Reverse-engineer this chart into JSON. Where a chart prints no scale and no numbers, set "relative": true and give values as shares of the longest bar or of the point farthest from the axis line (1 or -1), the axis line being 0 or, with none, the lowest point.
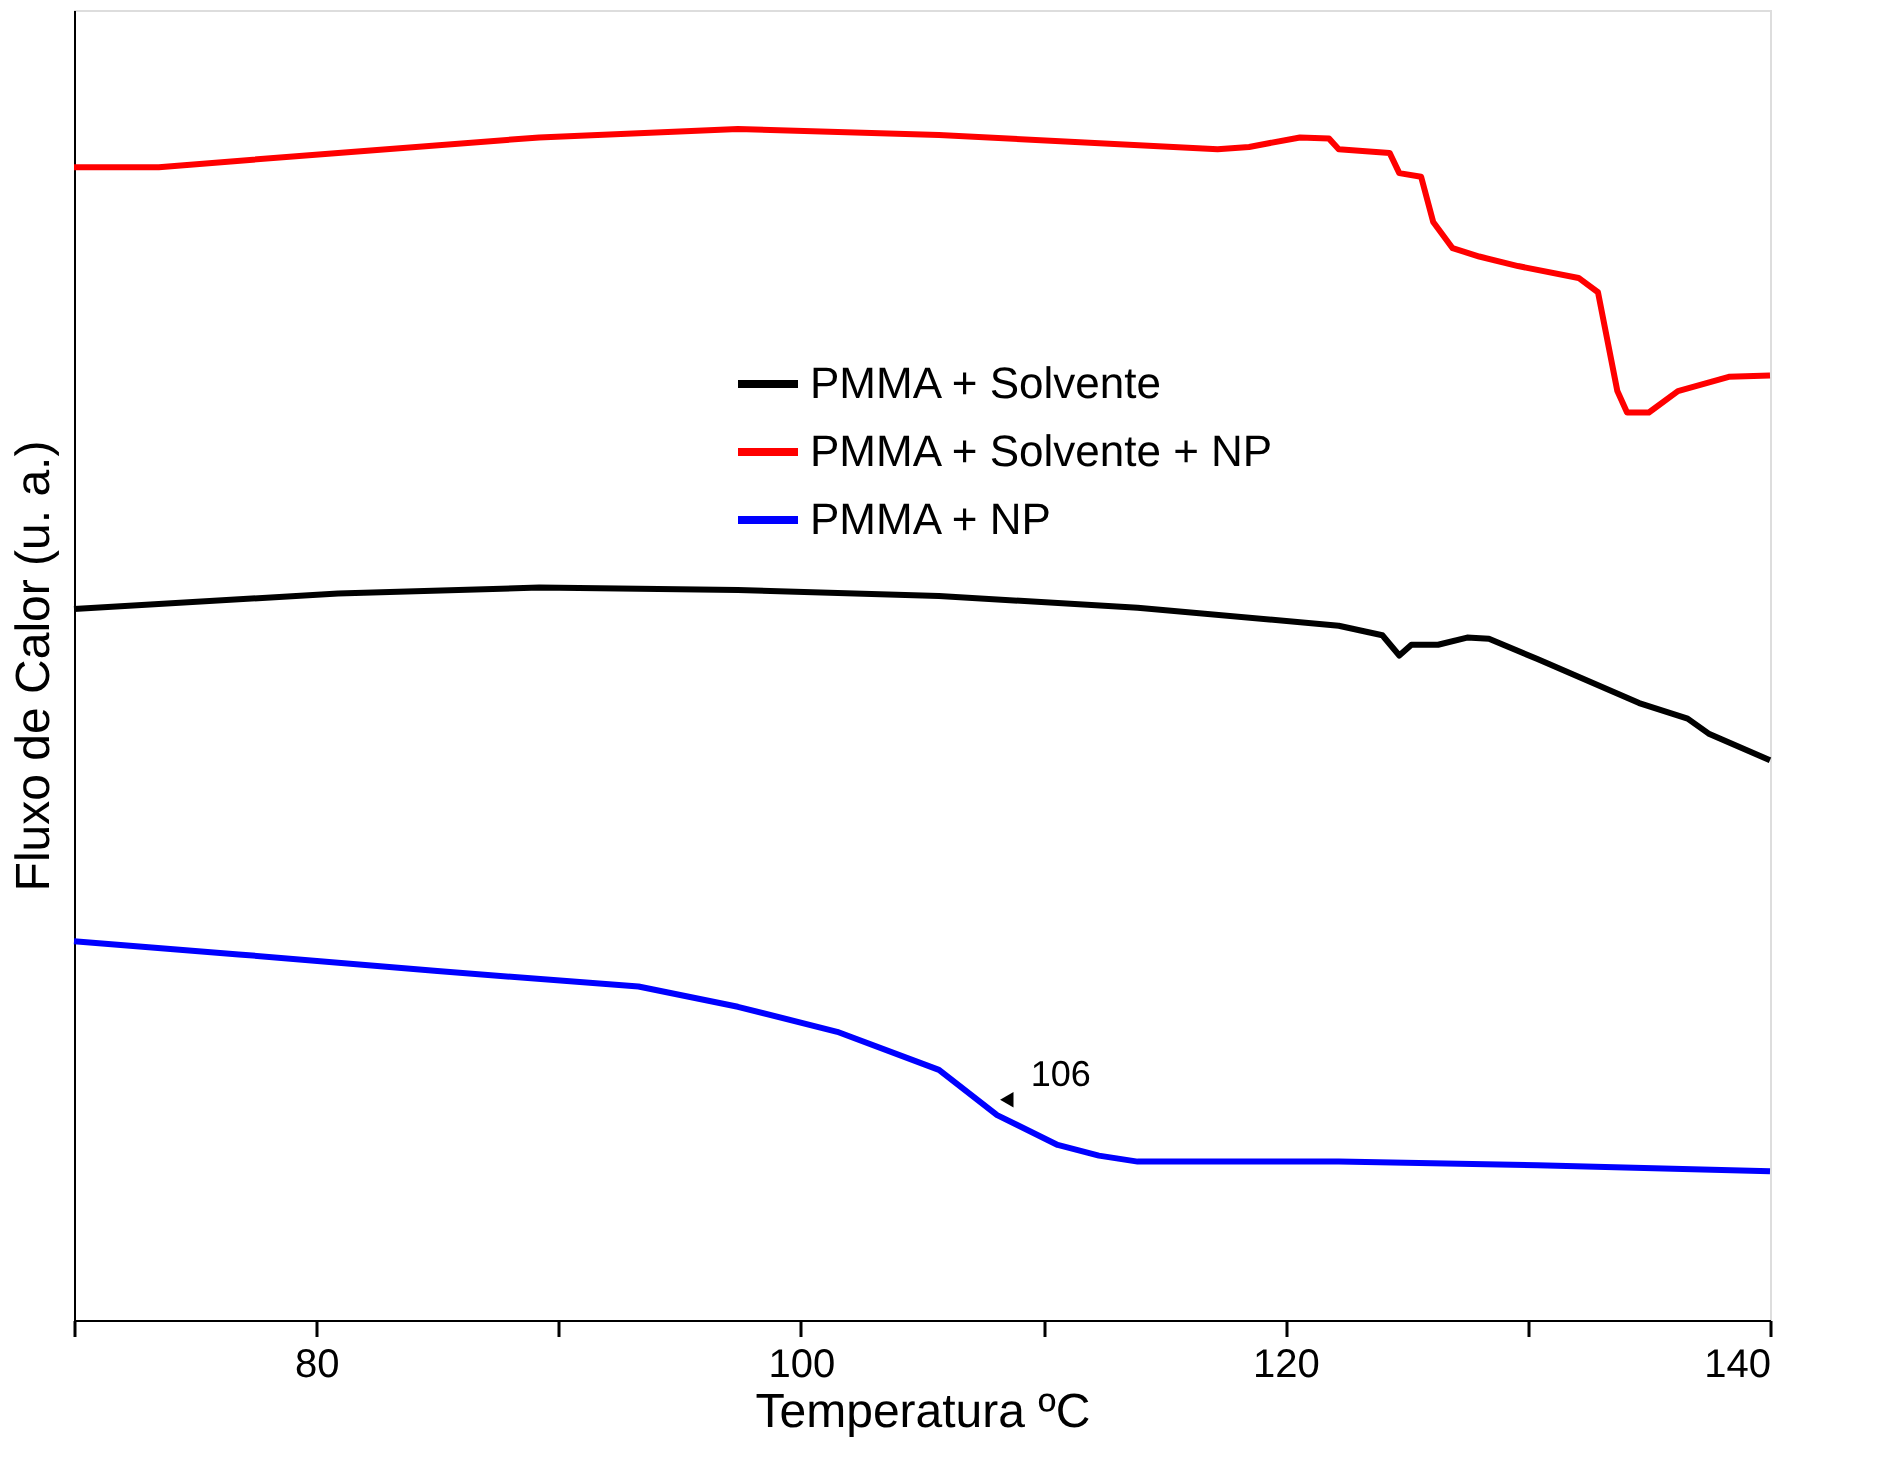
{
  "chart_data": {
    "type": "line",
    "relative": true,
    "xlabel": "Temperatura ºC",
    "ylabel": "Fluxo de Calor (u. a.)",
    "xlim": [
      70,
      140
    ],
    "xticks": [
      {
        "value": 70,
        "label": null
      },
      80,
      {
        "value": 90,
        "label": null
      },
      100,
      {
        "value": 110,
        "label": null
      },
      120,
      {
        "value": 130,
        "label": null
      },
      140
    ],
    "legend": "top right",
    "grid": false,
    "marker": "none",
    "line_style": "solid",
    "annotations": [
      {
        "text": "106",
        "x": 108.5,
        "y": 0.185
      }
    ],
    "series": [
      {
        "name": "PMMA + Solvente",
        "color": "#000000",
        "x": [
          70,
          80.9,
          89.2,
          97.4,
          105.7,
          113.9,
          122.2,
          124.0,
          124.7,
          125.2,
          126.3,
          127.5,
          128.4,
          130.4,
          134.6,
          136.6,
          137.5,
          140
        ],
        "values": [
          0.597,
          0.61,
          0.615,
          0.613,
          0.608,
          0.598,
          0.583,
          0.575,
          0.558,
          0.567,
          0.567,
          0.573,
          0.572,
          0.555,
          0.518,
          0.505,
          0.492,
          0.47
        ]
      },
      {
        "name": "PMMA + Solvente + NP",
        "color": "#ff0000",
        "x": [
          70,
          73.5,
          80.9,
          89.2,
          97.4,
          105.7,
          117.2,
          118.5,
          120.6,
          121.8,
          122.2,
          124.3,
          124.7,
          125.6,
          126.1,
          126.9,
          128.0,
          129.6,
          132.1,
          132.9,
          133.7,
          134.1,
          135.0,
          136.2,
          138.3,
          140
        ],
        "values": [
          0.968,
          0.968,
          0.98,
          0.993,
          1.0,
          0.995,
          0.983,
          0.985,
          0.993,
          0.992,
          0.983,
          0.98,
          0.963,
          0.96,
          0.922,
          0.9,
          0.893,
          0.885,
          0.875,
          0.863,
          0.78,
          0.762,
          0.762,
          0.78,
          0.792,
          0.793
        ]
      },
      {
        "name": "PMMA + NP",
        "color": "#0000ff",
        "x": [
          70,
          76.8,
          85.0,
          93.3,
          97.4,
          101.5,
          105.7,
          108.1,
          110.6,
          112.3,
          113.9,
          122.2,
          130.4,
          140
        ],
        "values": [
          0.318,
          0.307,
          0.293,
          0.28,
          0.263,
          0.242,
          0.21,
          0.172,
          0.147,
          0.138,
          0.133,
          0.133,
          0.13,
          0.125
        ]
      }
    ]
  }
}
